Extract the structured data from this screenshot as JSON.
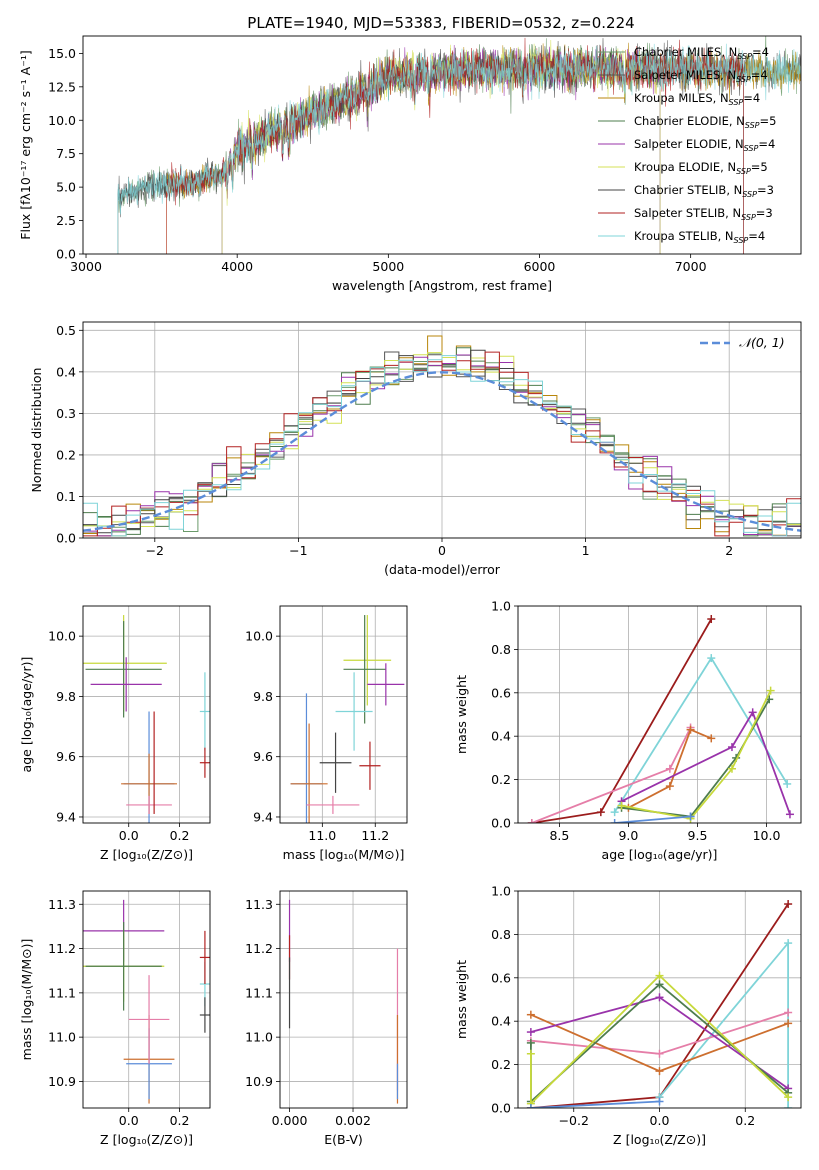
{
  "figure_title": "PLATE=1940, MJD=53383, FIBERID=0532, z=0.224",
  "chart_data": [
    {
      "id": "spectrum",
      "type": "line",
      "title": "PLATE=1940, MJD=53383, FIBERID=0532, z=0.224",
      "xlabel": "wavelength [Angstrom, rest frame]",
      "ylabel": "Flux [fλ10⁻¹⁷ erg cm⁻² s⁻¹ A⁻¹]",
      "xlim": [
        2980,
        7730
      ],
      "ylim": [
        0,
        16.3
      ],
      "xticks": [
        3000,
        4000,
        5000,
        6000,
        7000
      ],
      "yticks": [
        0.0,
        2.5,
        5.0,
        7.5,
        10.0,
        12.5,
        15.0
      ],
      "legend_position": "upper-right",
      "series": [
        {
          "name": "Chabrier MILES, N_SSP=4",
          "color": "#6a9a6a",
          "start": 3210,
          "end": 7730
        },
        {
          "name": "Salpeter MILES, N_SSP=4",
          "color": "#555555",
          "start": 3210,
          "end": 7730
        },
        {
          "name": "Kroupa MILES, N_SSP=4",
          "color": "#b8860b",
          "start": 3530,
          "end": 7730
        },
        {
          "name": "Chabrier ELODIE, N_SSP=5",
          "color": "#4e7d4e",
          "start": 3900,
          "end": 6800
        },
        {
          "name": "Salpeter ELODIE, N_SSP=4",
          "color": "#9933aa",
          "start": 3900,
          "end": 6800
        },
        {
          "name": "Kroupa ELODIE, N_SSP=5",
          "color": "#d4e157",
          "start": 3900,
          "end": 6800
        },
        {
          "name": "Chabrier STELIB, N_SSP=3",
          "color": "#444444",
          "start": 3210,
          "end": 7350
        },
        {
          "name": "Salpeter STELIB, N_SSP=3",
          "color": "#b22222",
          "start": 3530,
          "end": 7350
        },
        {
          "name": "Kroupa STELIB, N_SSP=4",
          "color": "#7fd4d8",
          "start": 3210,
          "end": 7730
        }
      ],
      "continuum": [
        [
          3210,
          4.3
        ],
        [
          3400,
          5.0
        ],
        [
          3700,
          5.3
        ],
        [
          3900,
          6.0
        ],
        [
          4000,
          7.8
        ],
        [
          4200,
          9.0
        ],
        [
          4500,
          10.5
        ],
        [
          4800,
          12.0
        ],
        [
          5000,
          13.3
        ],
        [
          5300,
          13.6
        ],
        [
          5600,
          13.8
        ],
        [
          6000,
          13.9
        ],
        [
          6500,
          13.9
        ],
        [
          7000,
          13.8
        ],
        [
          7500,
          13.7
        ],
        [
          7730,
          13.7
        ]
      ]
    },
    {
      "id": "residuals",
      "type": "line",
      "xlabel": "(data-model)/error",
      "ylabel": "Normed distribution",
      "xlim": [
        -2.5,
        2.5
      ],
      "ylim": [
        0,
        0.52
      ],
      "xticks": [
        -2,
        -1,
        0,
        1,
        2
      ],
      "yticks": [
        0.0,
        0.1,
        0.2,
        0.3,
        0.4,
        0.5
      ],
      "grid": true,
      "legend_position": "upper-right",
      "reference": {
        "name": "𝒩(0, 1)",
        "color": "#5b8dd9"
      },
      "bin_width": 0.1,
      "series_colors": [
        "#6a9a6a",
        "#555555",
        "#b8860b",
        "#4e7d4e",
        "#9933aa",
        "#d4e157",
        "#444444",
        "#b22222",
        "#7fd4d8"
      ]
    },
    {
      "id": "z-age",
      "type": "scatter",
      "xlabel": "Z [log₁₀(Z/Z⊙)]",
      "ylabel": "age  [log₁₀(age/yr)]",
      "xlim": [
        -0.18,
        0.32
      ],
      "ylim": [
        9.38,
        10.1
      ],
      "xticks": [
        0.0,
        0.2
      ],
      "yticks": [
        9.4,
        9.6,
        9.8,
        10.0
      ],
      "points": [
        {
          "x": -0.02,
          "xerr": 0.17,
          "y": 9.91,
          "yerr": 0.16,
          "color": "#c7d93b"
        },
        {
          "x": -0.02,
          "xerr": 0.15,
          "y": 9.89,
          "yerr": 0.16,
          "color": "#4e7d4e"
        },
        {
          "x": -0.01,
          "xerr": 0.14,
          "y": 9.84,
          "yerr": 0.09,
          "color": "#9933aa"
        },
        {
          "x": 0.08,
          "xerr": 0.1,
          "y": 9.51,
          "yerr": 0.24,
          "color": "#5b8dd9"
        },
        {
          "x": 0.08,
          "xerr": 0.11,
          "y": 9.51,
          "yerr": 0.1,
          "color": "#cd6f2f"
        },
        {
          "x": 0.08,
          "xerr": 0.09,
          "y": 9.44,
          "yerr": 0.03,
          "color": "#e57ea8"
        },
        {
          "x": 0.1,
          "xerr": 0.0,
          "y": 9.58,
          "yerr": 0.17,
          "color": "#b22222"
        },
        {
          "x": 0.3,
          "xerr": 0.02,
          "y": 9.75,
          "yerr": 0.13,
          "color": "#7fd4d8"
        },
        {
          "x": 0.3,
          "xerr": 0.02,
          "y": 9.58,
          "yerr": 0.05,
          "color": "#b22222"
        }
      ]
    },
    {
      "id": "mass-age",
      "type": "scatter",
      "xlabel": "mass [log₁₀(M/M⊙)]",
      "ylabel": "",
      "xlim": [
        10.84,
        11.32
      ],
      "ylim": [
        9.38,
        10.1
      ],
      "xticks": [
        11.0,
        11.2
      ],
      "yticks": [
        9.4,
        9.6,
        9.8,
        10.0
      ],
      "points": [
        {
          "x": 11.17,
          "xerr": 0.09,
          "y": 9.92,
          "yerr": 0.15,
          "color": "#c7d93b"
        },
        {
          "x": 11.16,
          "xerr": 0.08,
          "y": 9.89,
          "yerr": 0.18,
          "color": "#4e7d4e"
        },
        {
          "x": 11.24,
          "xerr": 0.07,
          "y": 9.84,
          "yerr": 0.07,
          "color": "#9933aa"
        },
        {
          "x": 10.94,
          "xerr": 0.06,
          "y": 9.51,
          "yerr": 0.3,
          "color": "#5b8dd9"
        },
        {
          "x": 10.95,
          "xerr": 0.07,
          "y": 9.51,
          "yerr": 0.2,
          "color": "#cd6f2f"
        },
        {
          "x": 11.04,
          "xerr": 0.1,
          "y": 9.44,
          "yerr": 0.03,
          "color": "#e57ea8"
        },
        {
          "x": 11.12,
          "xerr": 0.07,
          "y": 9.75,
          "yerr": 0.13,
          "color": "#7fd4d8"
        },
        {
          "x": 11.05,
          "xerr": 0.06,
          "y": 9.58,
          "yerr": 0.1,
          "color": "#444444"
        },
        {
          "x": 11.18,
          "xerr": 0.04,
          "y": 9.57,
          "yerr": 0.08,
          "color": "#b22222"
        }
      ]
    },
    {
      "id": "weight-age",
      "type": "line",
      "xlabel": "age  [log₁₀(age/yr)]",
      "ylabel": "mass weight",
      "xlim": [
        8.2,
        10.25
      ],
      "ylim": [
        0,
        1.0
      ],
      "xticks": [
        8.5,
        9.0,
        9.5,
        10.0
      ],
      "yticks": [
        0.0,
        0.2,
        0.4,
        0.6,
        0.8,
        1.0
      ],
      "grid": true,
      "series": [
        {
          "color": "#9b1c1c",
          "x": [
            8.3,
            8.8,
            9.6
          ],
          "y": [
            0.0,
            0.05,
            0.94
          ]
        },
        {
          "color": "#7fd4d8",
          "x": [
            8.9,
            9.6,
            10.15
          ],
          "y": [
            0.05,
            0.76,
            0.18
          ]
        },
        {
          "color": "#e57ea8",
          "x": [
            8.3,
            9.3,
            9.45
          ],
          "y": [
            0.0,
            0.25,
            0.44
          ]
        },
        {
          "color": "#cd6f2f",
          "x": [
            9.0,
            9.3,
            9.45,
            9.6
          ],
          "y": [
            0.07,
            0.17,
            0.43,
            0.39
          ]
        },
        {
          "color": "#9933aa",
          "x": [
            8.95,
            9.75,
            9.9,
            10.17
          ],
          "y": [
            0.1,
            0.35,
            0.51,
            0.04
          ]
        },
        {
          "color": "#4e7d4e",
          "x": [
            8.95,
            9.45,
            9.78,
            10.02
          ],
          "y": [
            0.07,
            0.03,
            0.3,
            0.57
          ]
        },
        {
          "color": "#c7d93b",
          "x": [
            8.95,
            9.45,
            9.75,
            10.03
          ],
          "y": [
            0.08,
            0.02,
            0.25,
            0.61
          ]
        },
        {
          "color": "#5b8dd9",
          "x": [
            8.9,
            9.45
          ],
          "y": [
            0.0,
            0.03
          ]
        }
      ]
    },
    {
      "id": "z-mass",
      "type": "scatter",
      "xlabel": "Z [log₁₀(Z/Z⊙)]",
      "ylabel": "mass [log₁₀(M/M⊙)]",
      "xlim": [
        -0.18,
        0.32
      ],
      "ylim": [
        10.84,
        11.33
      ],
      "xticks": [
        0.0,
        0.2
      ],
      "yticks": [
        10.9,
        11.0,
        11.1,
        11.2,
        11.3
      ],
      "points": [
        {
          "x": -0.02,
          "xerr": 0.16,
          "y": 11.24,
          "yerr": 0.07,
          "color": "#9933aa"
        },
        {
          "x": -0.02,
          "xerr": 0.16,
          "y": 11.16,
          "yerr": 0.08,
          "color": "#c7d93b"
        },
        {
          "x": -0.02,
          "xerr": 0.15,
          "y": 11.16,
          "yerr": 0.1,
          "color": "#4e7d4e"
        },
        {
          "x": 0.08,
          "xerr": 0.1,
          "y": 10.95,
          "yerr": 0.1,
          "color": "#cd6f2f"
        },
        {
          "x": 0.08,
          "xerr": 0.09,
          "y": 10.94,
          "yerr": 0.08,
          "color": "#5b8dd9"
        },
        {
          "x": 0.08,
          "xerr": 0.08,
          "y": 11.04,
          "yerr": 0.1,
          "color": "#e57ea8"
        },
        {
          "x": 0.3,
          "xerr": 0.02,
          "y": 11.12,
          "yerr": 0.05,
          "color": "#7fd4d8"
        },
        {
          "x": 0.3,
          "xerr": 0.02,
          "y": 11.18,
          "yerr": 0.06,
          "color": "#b22222"
        },
        {
          "x": 0.3,
          "xerr": 0.02,
          "y": 11.05,
          "yerr": 0.04,
          "color": "#444444"
        }
      ]
    },
    {
      "id": "ebv-mass",
      "type": "scatter",
      "xlabel": "E(B-V)",
      "ylabel": "",
      "xlim": [
        -0.0003,
        0.0037
      ],
      "ylim": [
        10.84,
        11.33
      ],
      "xticks": [
        0.0,
        0.002
      ],
      "yticks": [
        10.9,
        11.0,
        11.1,
        11.2,
        11.3
      ],
      "points": [
        {
          "x": 0.0,
          "xerr": 0.0,
          "y": 11.24,
          "yerr": 0.07,
          "color": "#9933aa"
        },
        {
          "x": 0.0,
          "xerr": 0.0,
          "y": 11.18,
          "yerr": 0.05,
          "color": "#b22222"
        },
        {
          "x": 0.0,
          "xerr": 0.0,
          "y": 11.1,
          "yerr": 0.08,
          "color": "#444444"
        },
        {
          "x": 0.0034,
          "xerr": 0.0,
          "y": 11.04,
          "yerr": 0.16,
          "color": "#e57ea8"
        },
        {
          "x": 0.0034,
          "xerr": 0.0,
          "y": 10.95,
          "yerr": 0.1,
          "color": "#cd6f2f"
        },
        {
          "x": 0.0034,
          "xerr": 0.0,
          "y": 10.9,
          "yerr": 0.04,
          "color": "#5b8dd9"
        }
      ]
    },
    {
      "id": "weight-z",
      "type": "line",
      "xlabel": "Z [log₁₀(Z/Z⊙)]",
      "ylabel": "mass weight",
      "xlim": [
        -0.33,
        0.33
      ],
      "ylim": [
        0,
        1.0
      ],
      "xticks": [
        -0.2,
        0.0,
        0.2
      ],
      "yticks": [
        0.0,
        0.2,
        0.4,
        0.6,
        0.8,
        1.0
      ],
      "grid": true,
      "series": [
        {
          "color": "#9b1c1c",
          "x": [
            -0.3,
            0.0,
            0.3
          ],
          "y": [
            0.0,
            0.05,
            0.94
          ]
        },
        {
          "color": "#7fd4d8",
          "x": [
            0.0,
            0.3,
            0.3
          ],
          "y": [
            0.05,
            0.76,
            0.0
          ]
        },
        {
          "color": "#e57ea8",
          "x": [
            -0.3,
            0.0,
            0.3
          ],
          "y": [
            0.31,
            0.25,
            0.44
          ]
        },
        {
          "color": "#cd6f2f",
          "x": [
            -0.3,
            0.0,
            0.3
          ],
          "y": [
            0.43,
            0.17,
            0.39
          ]
        },
        {
          "color": "#9933aa",
          "x": [
            -0.3,
            0.0,
            0.3
          ],
          "y": [
            0.35,
            0.51,
            0.09
          ]
        },
        {
          "color": "#4e7d4e",
          "x": [
            -0.3,
            -0.3,
            0.0,
            0.3
          ],
          "y": [
            0.3,
            0.03,
            0.57,
            0.07
          ]
        },
        {
          "color": "#c7d93b",
          "x": [
            -0.3,
            -0.3,
            0.0,
            0.3
          ],
          "y": [
            0.25,
            0.02,
            0.61,
            0.05
          ]
        },
        {
          "color": "#5b8dd9",
          "x": [
            -0.3,
            0.0
          ],
          "y": [
            0.0,
            0.03
          ]
        }
      ]
    }
  ]
}
